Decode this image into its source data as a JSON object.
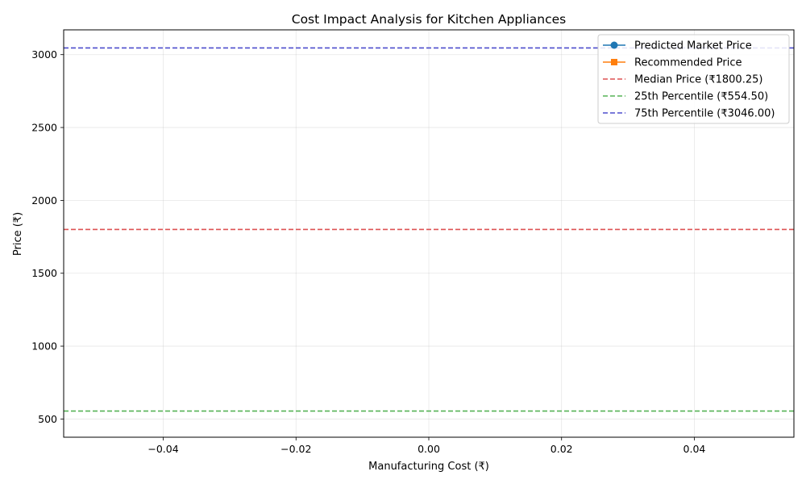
{
  "chart_data": {
    "type": "line",
    "title": "Cost Impact Analysis for Kitchen Appliances",
    "xlabel": "Manufacturing Cost (₹)",
    "ylabel": "Price (₹)",
    "xlim": [
      -0.055,
      0.055
    ],
    "ylim": [
      375,
      3170
    ],
    "x_ticks": [
      -0.04,
      -0.02,
      0.0,
      0.02,
      0.04
    ],
    "x_tick_labels": [
      "−0.04",
      "−0.02",
      "0.00",
      "0.02",
      "0.04"
    ],
    "y_ticks": [
      500,
      1000,
      1500,
      2000,
      2500,
      3000
    ],
    "y_tick_labels": [
      "500",
      "1000",
      "1500",
      "2000",
      "2500",
      "3000"
    ],
    "grid": true,
    "legend_position": "top-right",
    "series": [
      {
        "name": "Predicted Market Price",
        "color": "#1f77b4",
        "marker": "circle",
        "x": [],
        "y": []
      },
      {
        "name": "Recommended Price",
        "color": "#ff7f0e",
        "marker": "square",
        "x": [],
        "y": []
      }
    ],
    "reference_lines": [
      {
        "name": "Median Price (₹1800.25)",
        "value": 1800.25,
        "color": "#d62728"
      },
      {
        "name": "25th Percentile (₹554.50)",
        "value": 554.5,
        "color": "#2ca02c"
      },
      {
        "name": "75th Percentile (₹3046.00)",
        "value": 3046.0,
        "color": "#2020c0"
      }
    ]
  }
}
